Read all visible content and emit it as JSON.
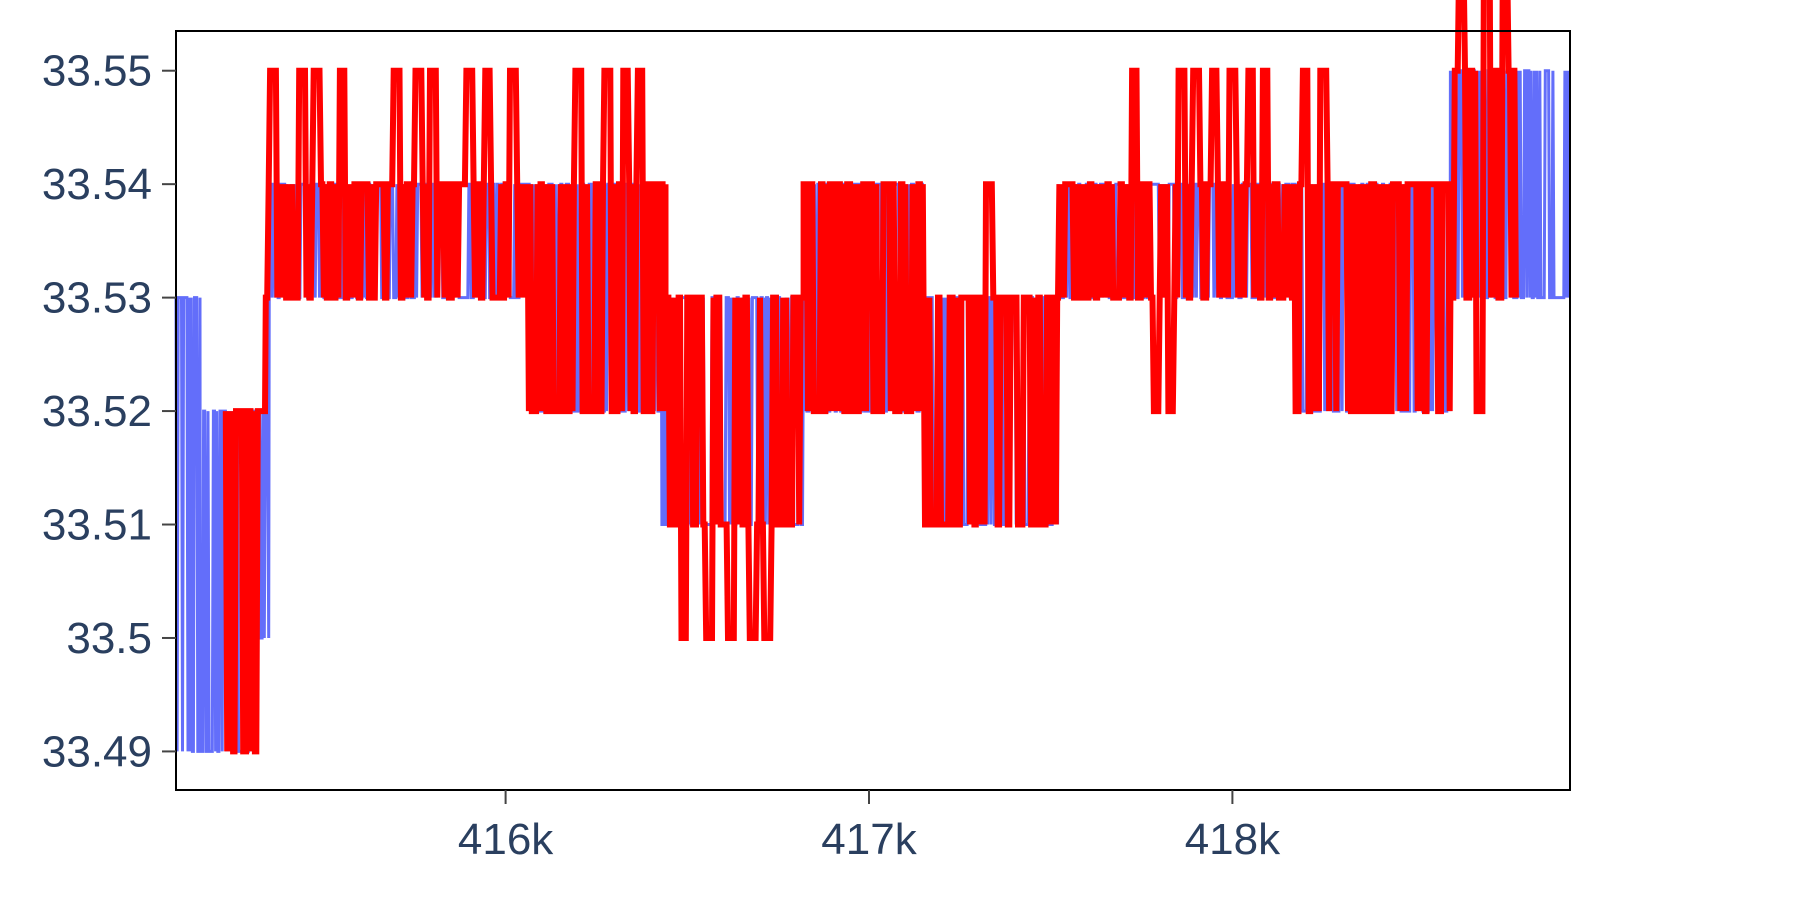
{
  "chart_data": {
    "type": "line",
    "title": "",
    "xlabel": "",
    "ylabel": "",
    "xlim": [
      415093,
      418929
    ],
    "ylim": [
      33.4866,
      33.5535
    ],
    "x_ticks": [
      416000,
      417000,
      418000
    ],
    "x_tick_labels": [
      "416k",
      "417k",
      "418k"
    ],
    "y_ticks": [
      33.49,
      33.5,
      33.51,
      33.52,
      33.53,
      33.54,
      33.55
    ],
    "y_tick_labels": [
      "33.49",
      "33.5",
      "33.51",
      "33.52",
      "33.53",
      "33.54",
      "33.55"
    ],
    "grid": false,
    "legend": "none",
    "series": [
      {
        "color": "#636efa",
        "line_width": "thin",
        "segments": [
          {
            "x_start": 415093,
            "x_end": 415160,
            "low": 33.49,
            "high": 33.53
          },
          {
            "x_start": 415160,
            "x_end": 415300,
            "low": 33.49,
            "high": 33.52
          },
          {
            "x_start": 415300,
            "x_end": 415350,
            "low": 33.5,
            "high": 33.52
          },
          {
            "x_start": 415350,
            "x_end": 416050,
            "low": 33.53,
            "high": 33.54
          },
          {
            "x_start": 416050,
            "x_end": 416430,
            "low": 33.52,
            "high": 33.54
          },
          {
            "x_start": 416430,
            "x_end": 416820,
            "low": 33.51,
            "high": 33.53
          },
          {
            "x_start": 416820,
            "x_end": 417150,
            "low": 33.52,
            "high": 33.54
          },
          {
            "x_start": 417150,
            "x_end": 417520,
            "low": 33.51,
            "high": 33.53
          },
          {
            "x_start": 417520,
            "x_end": 418170,
            "low": 33.53,
            "high": 33.54
          },
          {
            "x_start": 418170,
            "x_end": 418600,
            "low": 33.52,
            "high": 33.54
          },
          {
            "x_start": 418600,
            "x_end": 418929,
            "low": 33.53,
            "high": 33.55
          }
        ]
      },
      {
        "color": "#ff0000",
        "line_width": "thick",
        "segments": [
          {
            "x_start": 415230,
            "x_end": 415340,
            "low": 33.49,
            "high": 33.52
          },
          {
            "x_start": 415340,
            "x_end": 416060,
            "low": 33.53,
            "high": 33.54,
            "spikes": [
              415360,
              415440,
              415480,
              415550,
              415700,
              415760,
              415800,
              415900,
              415950,
              416020
            ]
          },
          {
            "x_start": 416060,
            "x_end": 416440,
            "low": 33.52,
            "high": 33.54,
            "spikes": [
              416200,
              416280,
              416330,
              416370
            ]
          },
          {
            "x_start": 416440,
            "x_end": 416820,
            "low": 33.51,
            "high": 33.53,
            "dips": [
              416490,
              416560,
              416620,
              416680,
              416720
            ]
          },
          {
            "x_start": 416820,
            "x_end": 417150,
            "low": 33.52,
            "high": 33.54
          },
          {
            "x_start": 417150,
            "x_end": 417520,
            "low": 33.51,
            "high": 33.53,
            "spikes": [
              417330
            ]
          },
          {
            "x_start": 417520,
            "x_end": 418170,
            "low": 33.53,
            "high": 33.54,
            "spikes": [
              417730,
              417860,
              417900,
              417950,
              418000,
              418050,
              418090
            ],
            "dips": [
              417790,
              417830
            ]
          },
          {
            "x_start": 418170,
            "x_end": 418600,
            "low": 33.52,
            "high": 33.54,
            "spikes": [
              418200,
              418250
            ]
          },
          {
            "x_start": 418600,
            "x_end": 418780,
            "low": 33.53,
            "high": 33.55,
            "spikes": [
              418630,
              418700,
              418750
            ],
            "dips": [
              418680
            ]
          }
        ]
      }
    ]
  }
}
